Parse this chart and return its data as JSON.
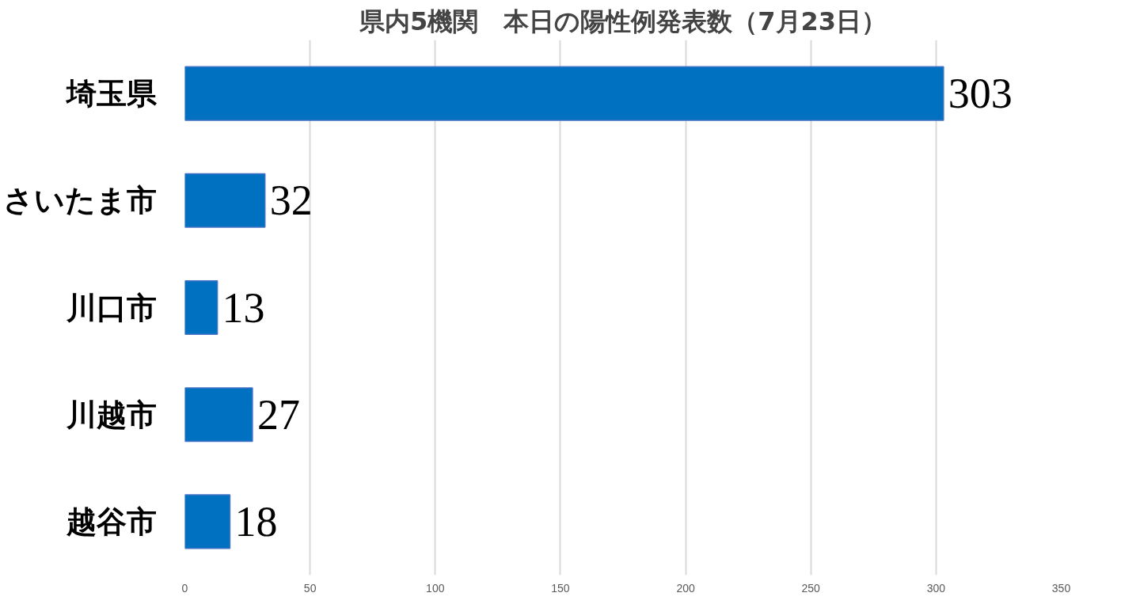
{
  "chart_data": {
    "type": "bar",
    "orientation": "horizontal",
    "title": "県内5機関　本日の陽性例発表数（7月23日）",
    "categories": [
      "埼玉県",
      "さいたま市",
      "川口市",
      "川越市",
      "越谷市"
    ],
    "values": [
      303,
      32,
      13,
      27,
      18
    ],
    "color": "#0070c0",
    "xlim": [
      0,
      350
    ],
    "xticks": [
      0,
      50,
      100,
      150,
      200,
      250,
      300,
      350
    ],
    "grid": "x",
    "data_labels": true
  }
}
